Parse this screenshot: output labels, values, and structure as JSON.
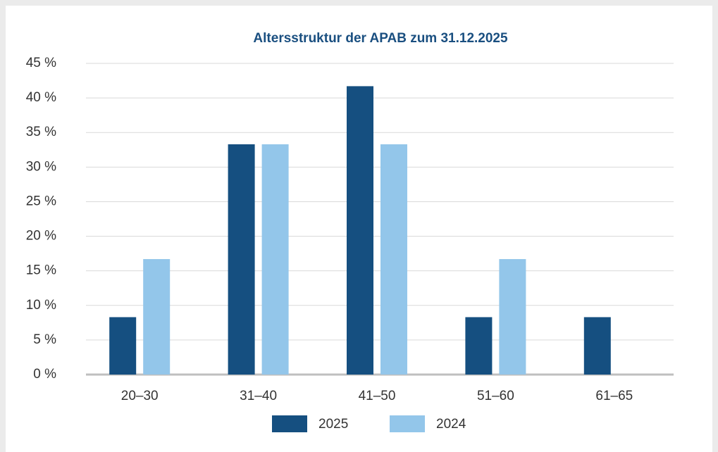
{
  "chart_data": {
    "type": "bar",
    "title": "Altersstruktur der APAB zum 31.12.2025",
    "categories": [
      "20–30",
      "31–40",
      "41–50",
      "51–60",
      "61–65"
    ],
    "series": [
      {
        "name": "2025",
        "color": "#154f80",
        "values": [
          8.3,
          33.3,
          41.7,
          8.3,
          8.3
        ]
      },
      {
        "name": "2024",
        "color": "#93c6ea",
        "values": [
          16.7,
          33.3,
          33.3,
          16.7,
          0
        ]
      }
    ],
    "ylim": [
      0,
      45
    ],
    "yticks": [
      {
        "value": 0,
        "label": "0 %"
      },
      {
        "value": 5,
        "label": "5 %"
      },
      {
        "value": 10,
        "label": "10 %"
      },
      {
        "value": 15,
        "label": "15 %"
      },
      {
        "value": 20,
        "label": "20 %"
      },
      {
        "value": 25,
        "label": "25 %"
      },
      {
        "value": 30,
        "label": "30 %"
      },
      {
        "value": 35,
        "label": "35 %"
      },
      {
        "value": 40,
        "label": "40 %"
      },
      {
        "value": 45,
        "label": "45 %"
      }
    ],
    "grid": true,
    "legend": "bottom"
  }
}
